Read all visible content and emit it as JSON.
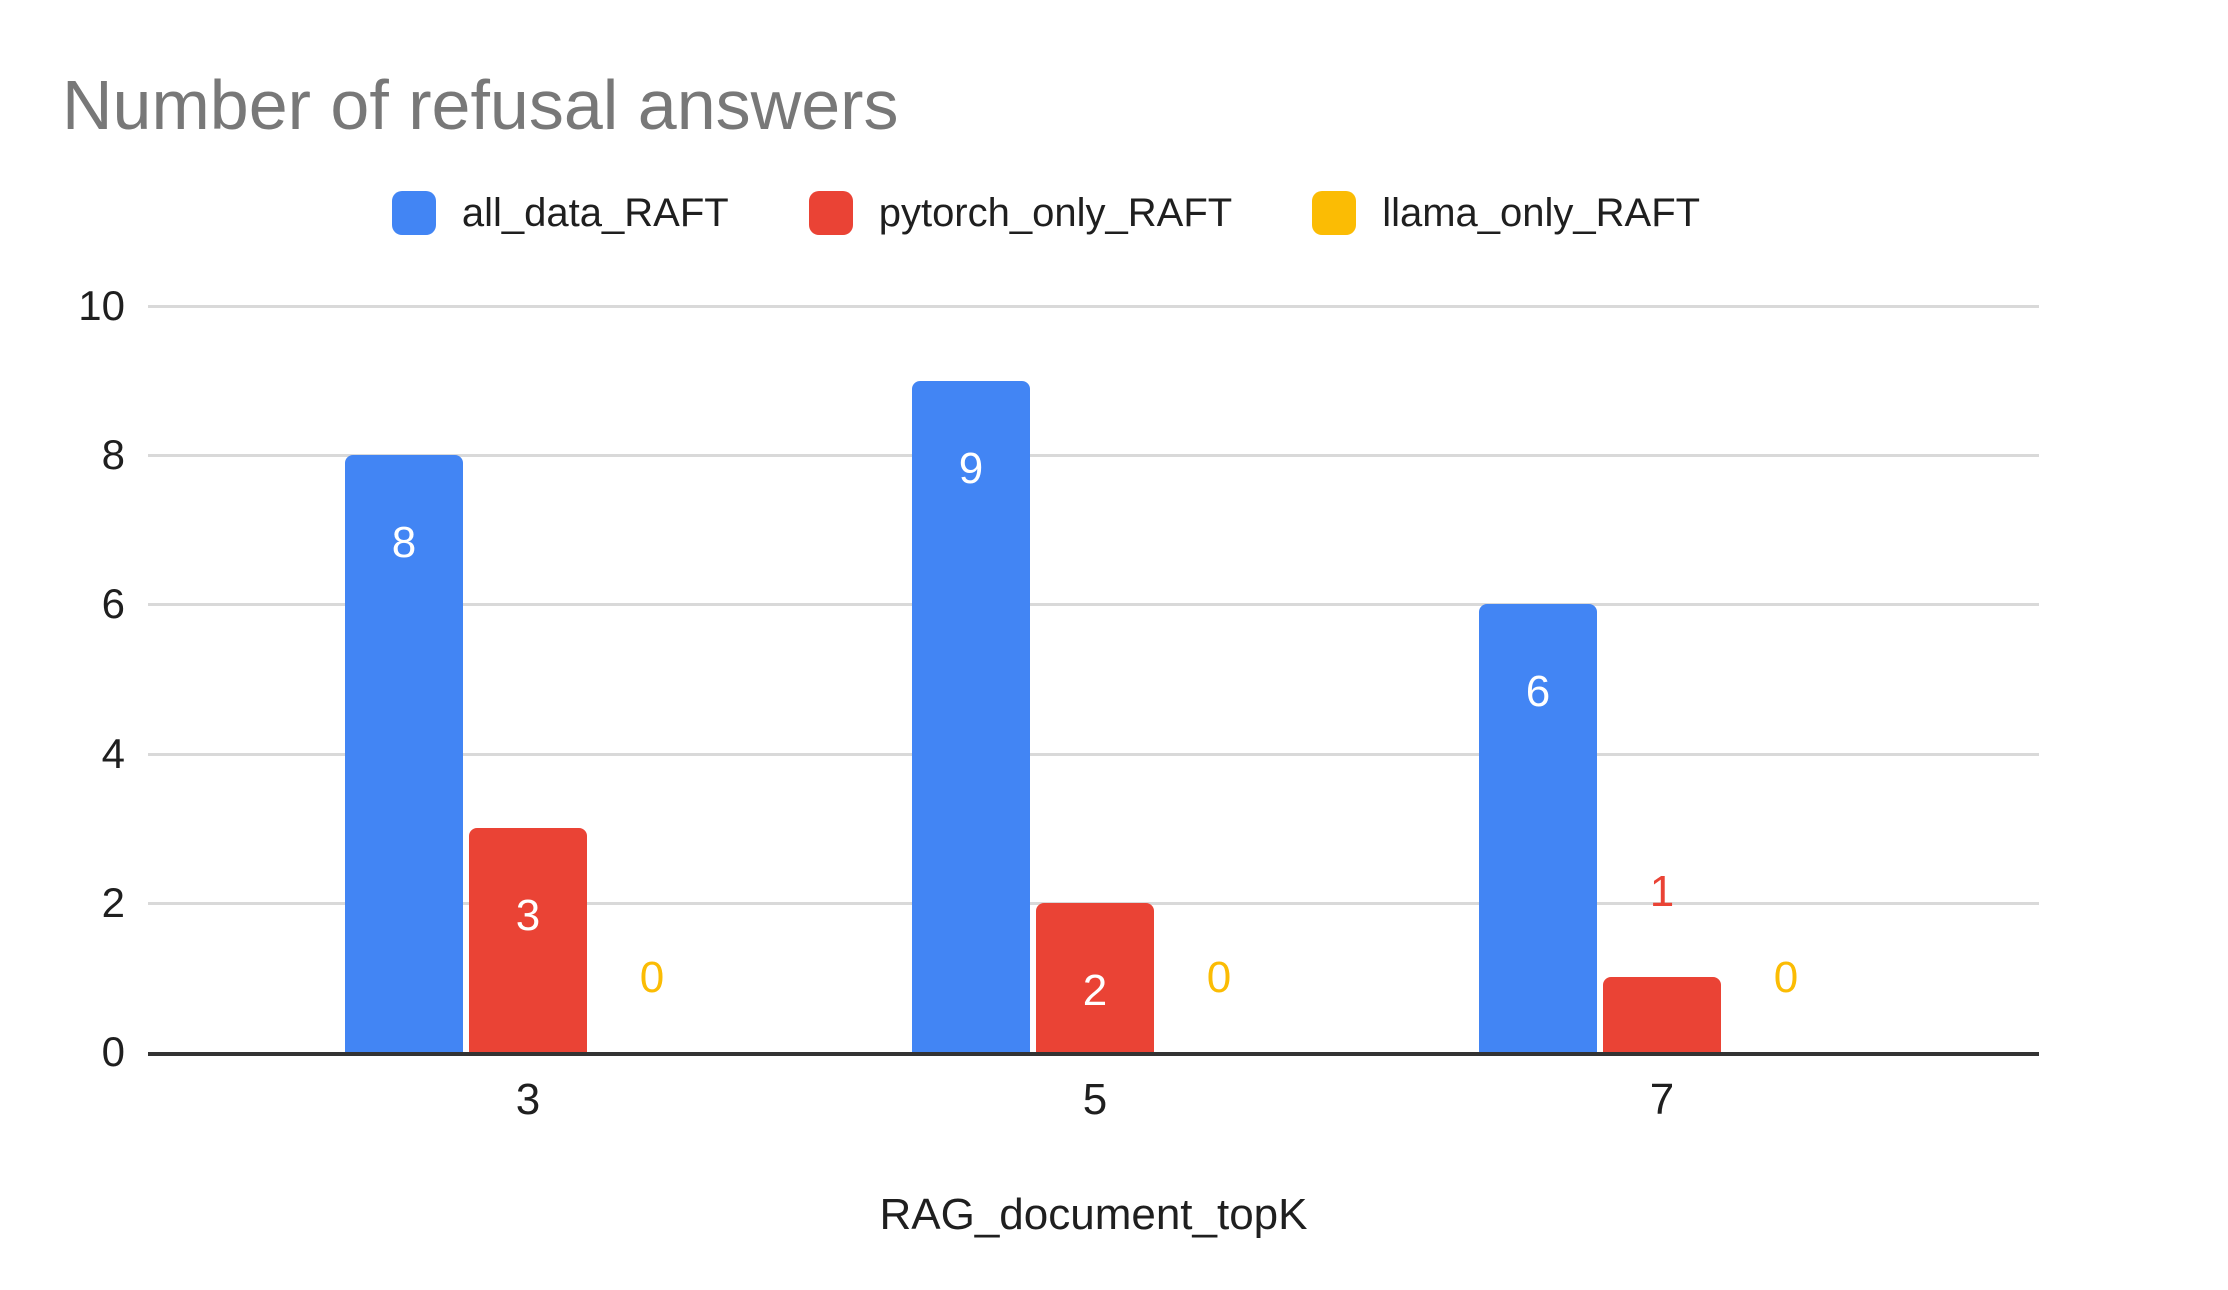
{
  "title": "Number of refusal answers",
  "chart_data": {
    "type": "bar",
    "title": "Number of refusal answers",
    "categories": [
      "3",
      "5",
      "7"
    ],
    "series": [
      {
        "name": "all_data_RAFT",
        "color": "#4285F4",
        "values": [
          8,
          9,
          6
        ]
      },
      {
        "name": "pytorch_only_RAFT",
        "color": "#EA4335",
        "values": [
          3,
          2,
          1
        ]
      },
      {
        "name": "llama_only_RAFT",
        "color": "#FBBC04",
        "values": [
          0,
          0,
          0
        ]
      }
    ],
    "xlabel": "RAG_document_topK",
    "ylabel": "",
    "ylim": [
      0,
      10
    ],
    "yticks": [
      0,
      2,
      4,
      6,
      8,
      10
    ],
    "grid": true,
    "legend_position": "top",
    "data_labels": true
  },
  "colors": {
    "title_text": "#787878",
    "axis_text": "#1f1f1f",
    "gridline": "#d9d9d9",
    "axis_line": "#333333",
    "background": "#ffffff",
    "label_inside": "#ffffff"
  }
}
